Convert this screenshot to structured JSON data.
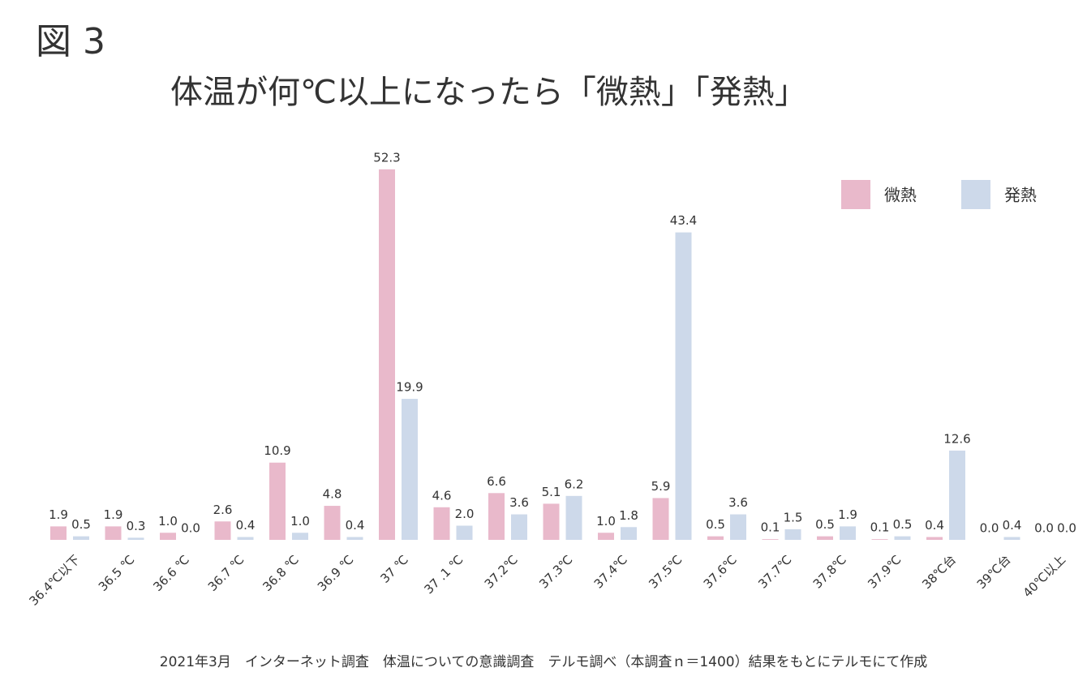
{
  "label": "図 3",
  "chart_data": {
    "type": "bar",
    "title": "体温が何℃以上になったら「微熱」「発熱」",
    "categories": [
      "36.4℃以下",
      "36.5 ℃",
      "36.6 ℃",
      "36.7 ℃",
      "36.8 ℃",
      "36.9 ℃",
      "37 ℃",
      "37 .1 ℃",
      "37.2℃",
      "37.3℃",
      "37.4℃",
      "37.5℃",
      "37.6℃",
      "37.7℃",
      "37.8℃",
      "37.9℃",
      "38℃台",
      "39℃台",
      "40℃以上"
    ],
    "series": [
      {
        "name": "微熱",
        "color": "#e9b9cb",
        "values": [
          1.9,
          1.9,
          1.0,
          2.6,
          10.9,
          4.8,
          52.3,
          4.6,
          6.6,
          5.1,
          1.0,
          5.9,
          0.5,
          0.1,
          0.5,
          0.1,
          0.4,
          0.0,
          0.0
        ],
        "value_labels": [
          "1.9",
          "1.9",
          "1.0",
          "2.6",
          "10.9",
          "4.8",
          "52.3",
          "4.6",
          "6.6",
          "5.1",
          "1.0",
          "5.9",
          "0.5",
          "0.1",
          "0.5",
          "0.1",
          "0.4",
          "0.0",
          "0.0"
        ]
      },
      {
        "name": "発熱",
        "color": "#cdd9ea",
        "values": [
          0.5,
          0.3,
          0.0,
          0.4,
          1.0,
          0.4,
          19.9,
          2.0,
          3.6,
          6.2,
          1.8,
          43.4,
          3.6,
          1.5,
          1.9,
          0.5,
          12.6,
          0.4,
          0.0
        ],
        "value_labels": [
          "0.5",
          "0.3",
          "0.0",
          "0.4",
          "1.0",
          "0.4",
          "19.9",
          "2.0",
          "3.6",
          "6.2",
          "1.8",
          "43.4",
          "3.6",
          "1.5",
          "1.9",
          "0.5",
          "12.6",
          "0.4",
          "0.0"
        ]
      }
    ],
    "legend": "top-right",
    "note": "2021年3月　インターネット調査　体温についての意識調査　テルモ調べ（本調査ｎ＝1400）結果をもとにテルモにて作成"
  }
}
